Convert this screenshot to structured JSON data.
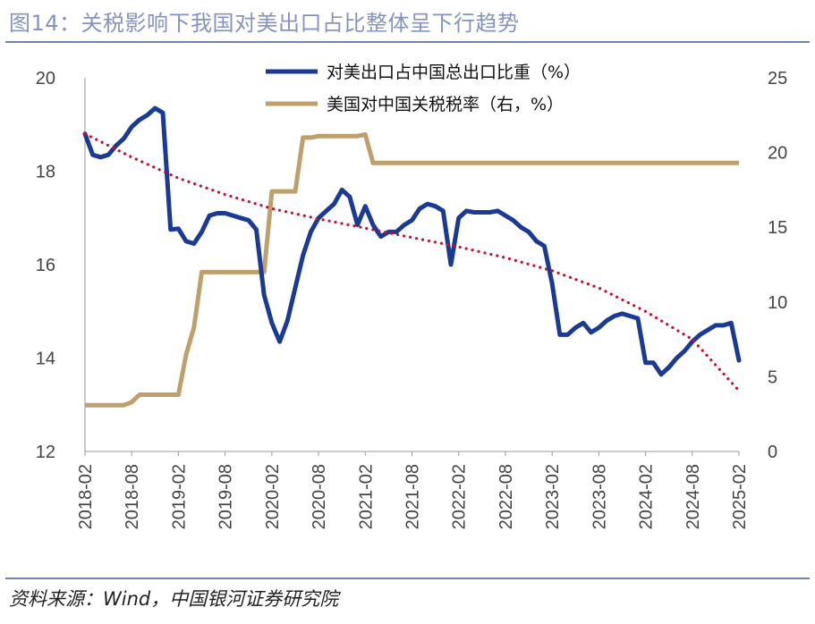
{
  "figure": {
    "title": "图14：关税影响下我国对美出口占比整体呈下行趋势",
    "source": "资料来源：Wind，中国银河证券研究院"
  },
  "colors": {
    "share": "#1a3a96",
    "tariff": "#bf9f6c",
    "trend": "#c8102e",
    "title": "#8593c0",
    "rule": "#7080b8"
  },
  "chart_data": {
    "type": "line",
    "x_ticks": [
      "2018-02",
      "2018-08",
      "2019-02",
      "2019-08",
      "2020-02",
      "2020-08",
      "2021-02",
      "2021-08",
      "2022-02",
      "2022-08",
      "2023-02",
      "2023-08",
      "2024-02",
      "2024-08",
      "2025-02"
    ],
    "x_range": [
      "2018-02",
      "2025-02"
    ],
    "y_left": {
      "range": [
        12,
        20
      ],
      "ticks": [
        12,
        14,
        16,
        18,
        20
      ]
    },
    "y_right": {
      "range": [
        0,
        25
      ],
      "ticks": [
        0,
        5,
        10,
        15,
        20,
        25
      ]
    },
    "grid": false,
    "legend_position": "top-center",
    "series": [
      {
        "name": "对美出口占中国总出口比重（%）",
        "axis": "left",
        "style": "solid",
        "points": [
          [
            "2018-02",
            18.8
          ],
          [
            "2018-03",
            18.35
          ],
          [
            "2018-04",
            18.3
          ],
          [
            "2018-05",
            18.35
          ],
          [
            "2018-06",
            18.55
          ],
          [
            "2018-07",
            18.7
          ],
          [
            "2018-08",
            18.95
          ],
          [
            "2018-09",
            19.1
          ],
          [
            "2018-10",
            19.2
          ],
          [
            "2018-11",
            19.35
          ],
          [
            "2018-12",
            19.25
          ],
          [
            "2019-01",
            16.75
          ],
          [
            "2019-02",
            16.77
          ],
          [
            "2019-03",
            16.5
          ],
          [
            "2019-04",
            16.45
          ],
          [
            "2019-05",
            16.7
          ],
          [
            "2019-06",
            17.05
          ],
          [
            "2019-07",
            17.1
          ],
          [
            "2019-08",
            17.1
          ],
          [
            "2019-09",
            17.05
          ],
          [
            "2019-10",
            17.0
          ],
          [
            "2019-11",
            16.95
          ],
          [
            "2019-12",
            16.75
          ],
          [
            "2020-01",
            15.35
          ],
          [
            "2020-02",
            14.75
          ],
          [
            "2020-03",
            14.35
          ],
          [
            "2020-04",
            14.8
          ],
          [
            "2020-05",
            15.5
          ],
          [
            "2020-06",
            16.2
          ],
          [
            "2020-07",
            16.7
          ],
          [
            "2020-08",
            17.0
          ],
          [
            "2020-09",
            17.15
          ],
          [
            "2020-10",
            17.3
          ],
          [
            "2020-11",
            17.6
          ],
          [
            "2020-12",
            17.45
          ],
          [
            "2021-01",
            16.85
          ],
          [
            "2021-02",
            17.25
          ],
          [
            "2021-03",
            16.85
          ],
          [
            "2021-04",
            16.6
          ],
          [
            "2021-05",
            16.7
          ],
          [
            "2021-06",
            16.7
          ],
          [
            "2021-07",
            16.85
          ],
          [
            "2021-08",
            16.95
          ],
          [
            "2021-09",
            17.2
          ],
          [
            "2021-10",
            17.3
          ],
          [
            "2021-11",
            17.25
          ],
          [
            "2021-12",
            17.15
          ],
          [
            "2022-01",
            16.0
          ],
          [
            "2022-02",
            17.0
          ],
          [
            "2022-03",
            17.15
          ],
          [
            "2022-04",
            17.12
          ],
          [
            "2022-05",
            17.12
          ],
          [
            "2022-06",
            17.12
          ],
          [
            "2022-07",
            17.15
          ],
          [
            "2022-08",
            17.05
          ],
          [
            "2022-09",
            16.95
          ],
          [
            "2022-10",
            16.8
          ],
          [
            "2022-11",
            16.7
          ],
          [
            "2022-12",
            16.5
          ],
          [
            "2023-01",
            16.4
          ],
          [
            "2023-02",
            15.6
          ],
          [
            "2023-03",
            14.5
          ],
          [
            "2023-04",
            14.5
          ],
          [
            "2023-05",
            14.65
          ],
          [
            "2023-06",
            14.75
          ],
          [
            "2023-07",
            14.55
          ],
          [
            "2023-08",
            14.65
          ],
          [
            "2023-09",
            14.8
          ],
          [
            "2023-10",
            14.9
          ],
          [
            "2023-11",
            14.95
          ],
          [
            "2023-12",
            14.9
          ],
          [
            "2024-01",
            14.85
          ],
          [
            "2024-02",
            13.9
          ],
          [
            "2024-03",
            13.9
          ],
          [
            "2024-04",
            13.65
          ],
          [
            "2024-05",
            13.8
          ],
          [
            "2024-06",
            14.0
          ],
          [
            "2024-07",
            14.15
          ],
          [
            "2024-08",
            14.35
          ],
          [
            "2024-09",
            14.5
          ],
          [
            "2024-10",
            14.6
          ],
          [
            "2024-11",
            14.7
          ],
          [
            "2024-12",
            14.7
          ],
          [
            "2025-01",
            14.75
          ],
          [
            "2025-02",
            13.95
          ]
        ]
      },
      {
        "name": "美国对中国关税税率（右，%）",
        "axis": "right",
        "style": "solid",
        "points": [
          [
            "2018-02",
            3.1
          ],
          [
            "2018-03",
            3.1
          ],
          [
            "2018-04",
            3.1
          ],
          [
            "2018-05",
            3.1
          ],
          [
            "2018-06",
            3.1
          ],
          [
            "2018-07",
            3.1
          ],
          [
            "2018-08",
            3.3
          ],
          [
            "2018-09",
            3.8
          ],
          [
            "2018-10",
            3.8
          ],
          [
            "2018-11",
            3.8
          ],
          [
            "2018-12",
            3.8
          ],
          [
            "2019-01",
            3.8
          ],
          [
            "2019-02",
            3.8
          ],
          [
            "2019-03",
            6.5
          ],
          [
            "2019-04",
            8.3
          ],
          [
            "2019-05",
            12.0
          ],
          [
            "2019-06",
            12.0
          ],
          [
            "2019-07",
            12.0
          ],
          [
            "2019-08",
            12.0
          ],
          [
            "2019-09",
            12.0
          ],
          [
            "2019-10",
            12.0
          ],
          [
            "2019-11",
            12.0
          ],
          [
            "2019-12",
            12.0
          ],
          [
            "2020-01",
            12.0
          ],
          [
            "2020-02",
            17.4
          ],
          [
            "2020-03",
            17.4
          ],
          [
            "2020-04",
            17.4
          ],
          [
            "2020-05",
            17.4
          ],
          [
            "2020-06",
            21.0
          ],
          [
            "2020-07",
            21.0
          ],
          [
            "2020-08",
            21.1
          ],
          [
            "2020-09",
            21.1
          ],
          [
            "2020-10",
            21.1
          ],
          [
            "2020-11",
            21.1
          ],
          [
            "2020-12",
            21.1
          ],
          [
            "2021-01",
            21.1
          ],
          [
            "2021-02",
            21.2
          ],
          [
            "2021-03",
            19.3
          ],
          [
            "2025-02",
            19.3
          ]
        ]
      },
      {
        "name": "",
        "axis": "left",
        "style": "dotted",
        "points": [
          [
            "2018-02",
            18.8
          ],
          [
            "2018-08",
            18.3
          ],
          [
            "2019-02",
            17.85
          ],
          [
            "2019-08",
            17.5
          ],
          [
            "2020-02",
            17.2
          ],
          [
            "2020-08",
            16.98
          ],
          [
            "2021-02",
            16.78
          ],
          [
            "2021-08",
            16.58
          ],
          [
            "2022-02",
            16.38
          ],
          [
            "2022-08",
            16.15
          ],
          [
            "2023-02",
            15.87
          ],
          [
            "2023-08",
            15.5
          ],
          [
            "2024-02",
            15.0
          ],
          [
            "2024-08",
            14.4
          ],
          [
            "2025-02",
            13.3
          ]
        ]
      }
    ]
  }
}
